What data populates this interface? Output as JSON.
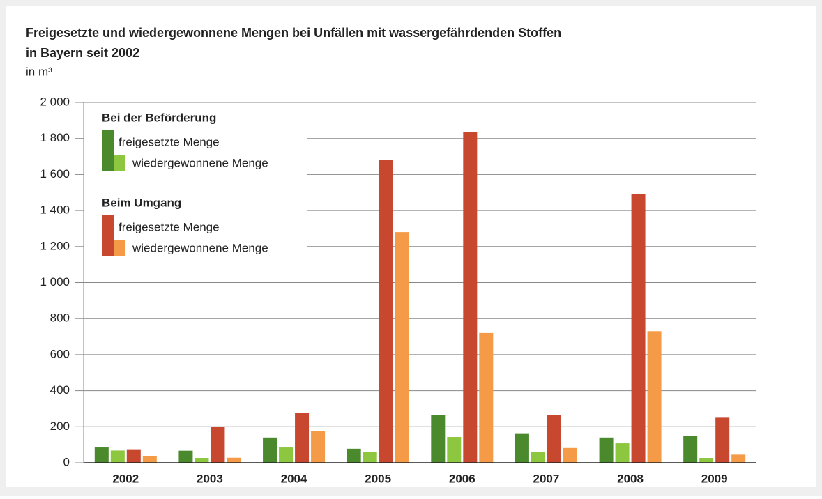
{
  "chart_data": {
    "type": "bar",
    "title": [
      "Freigesetzte und wiedergewonnene Mengen bei Unfällen mit wassergefährdenden Stoffen",
      "in Bayern seit 2002"
    ],
    "subtitle": "in m³",
    "categories": [
      "2002",
      "2003",
      "2004",
      "2005",
      "2006",
      "2007",
      "2008",
      "2009"
    ],
    "legend_groups": [
      "Bei der Beförderung",
      "Beim Umgang"
    ],
    "series": [
      {
        "name": "freigesetzte Menge",
        "color": "#4a8a2c",
        "values": [
          85,
          67,
          140,
          78,
          265,
          160,
          140,
          148
        ]
      },
      {
        "name": "wiedergewonnene Menge",
        "color": "#8dc63f",
        "values": [
          68,
          27,
          85,
          62,
          143,
          62,
          108,
          27
        ]
      },
      {
        "name": "freigesetzte Menge",
        "color": "#c8472f",
        "values": [
          75,
          200,
          275,
          1680,
          1835,
          265,
          1490,
          250
        ]
      },
      {
        "name": "wiedergewonnene Menge",
        "color": "#f59a46",
        "values": [
          35,
          28,
          175,
          1280,
          720,
          82,
          730,
          45
        ]
      }
    ],
    "ylim": [
      0,
      2000
    ],
    "yticks": [
      0,
      200,
      400,
      600,
      800,
      {
        "value": 1000,
        "label": "1 000"
      },
      {
        "value": 1200,
        "label": "1 200"
      },
      {
        "value": 1400,
        "label": "1 400"
      },
      {
        "value": 1600,
        "label": "1 600"
      },
      {
        "value": 1800,
        "label": "1 800"
      },
      {
        "value": 2000,
        "label": "2 000"
      }
    ],
    "grid": true
  }
}
